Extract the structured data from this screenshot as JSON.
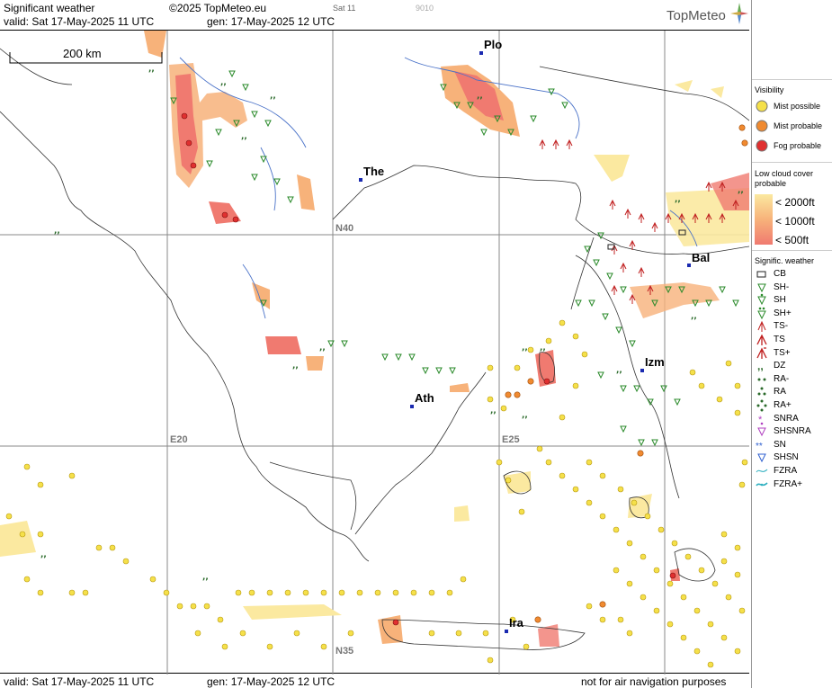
{
  "header": {
    "title": "Significant weather",
    "copyright": "©2025 TopMeteo.eu",
    "sat_label": "Sat 11",
    "code": "9010",
    "valid": "valid:  Sat  17-May-2025  11 UTC",
    "gen": "gen: 17-May-2025 12 UTC",
    "logo": "TopMeteo"
  },
  "footer": {
    "valid": "valid:  Sat  17-May-2025  11 UTC",
    "gen": "gen: 17-May-2025 12 UTC",
    "note": "not for air navigation purposes"
  },
  "scale": {
    "label": "200 km"
  },
  "cities": [
    {
      "name": "Plo"
    },
    {
      "name": "The"
    },
    {
      "name": "Bal"
    },
    {
      "name": "Izm"
    },
    {
      "name": "Ath"
    },
    {
      "name": "Ira"
    }
  ],
  "grid_labels": {
    "n40": "N40",
    "n35": "N35",
    "e20": "E20",
    "e25": "E25"
  },
  "legend": {
    "visibility_title": "Visibility",
    "visibility": [
      {
        "label": "Mist possible",
        "color": "#f5e04a"
      },
      {
        "label": "Mist probable",
        "color": "#f08a30"
      },
      {
        "label": "Fog probable",
        "color": "#e03030"
      }
    ],
    "lowcloud_title": "Low cloud cover probable",
    "lowcloud": [
      {
        "label": "< 2000ft",
        "color": "#fbe9a0"
      },
      {
        "label": "< 1000ft",
        "color": "#f7b27a"
      },
      {
        "label": "<   500ft",
        "color": "#f07a70"
      }
    ],
    "sigwx_title": "Signific. weather",
    "sigwx": [
      {
        "label": "CB",
        "icon": "cb-icon"
      },
      {
        "label": "SH-",
        "icon": "shower-light-icon"
      },
      {
        "label": "SH",
        "icon": "shower-icon"
      },
      {
        "label": "SH+",
        "icon": "shower-heavy-icon"
      },
      {
        "label": "TS-",
        "icon": "thunderstorm-light-icon"
      },
      {
        "label": "TS",
        "icon": "thunderstorm-icon"
      },
      {
        "label": "TS+",
        "icon": "thunderstorm-heavy-icon"
      },
      {
        "label": "DZ",
        "icon": "drizzle-icon"
      },
      {
        "label": "RA-",
        "icon": "rain-light-icon"
      },
      {
        "label": "RA",
        "icon": "rain-icon"
      },
      {
        "label": "RA+",
        "icon": "rain-heavy-icon"
      },
      {
        "label": "SNRA",
        "icon": "snow-rain-icon"
      },
      {
        "label": "SHSNRA",
        "icon": "snow-rain-shower-icon"
      },
      {
        "label": "SN",
        "icon": "snow-icon"
      },
      {
        "label": "SHSN",
        "icon": "snow-shower-icon"
      },
      {
        "label": "FZRA",
        "icon": "freezing-rain-icon"
      },
      {
        "label": "FZRA+",
        "icon": "freezing-rain-heavy-icon"
      }
    ]
  }
}
